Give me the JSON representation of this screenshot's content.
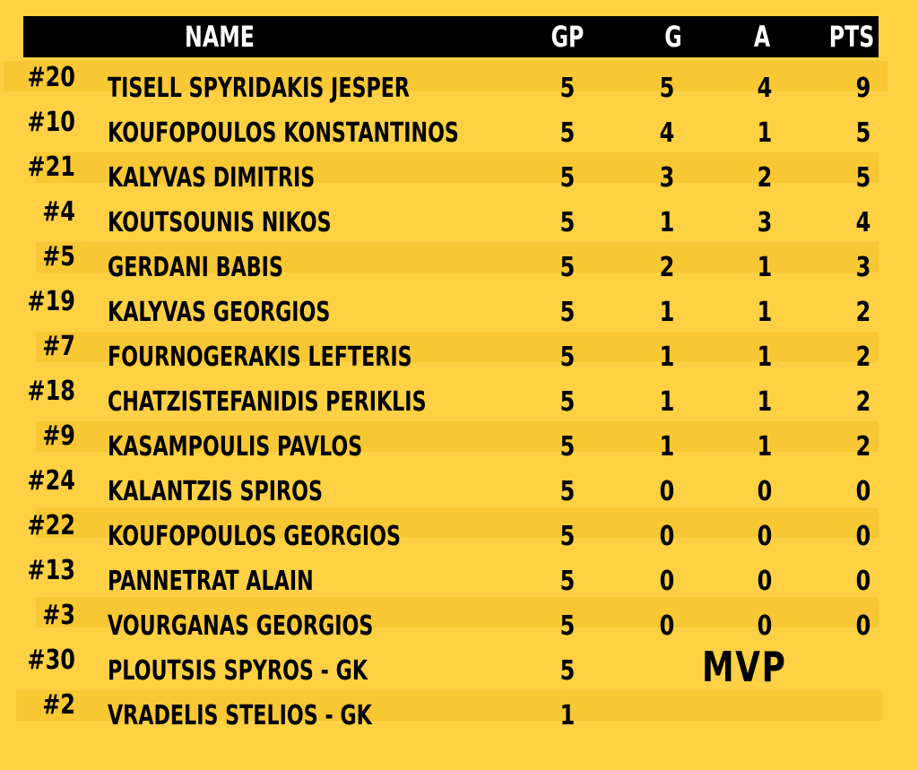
{
  "header": {
    "name": "NAME",
    "gp": "GP",
    "g": "G",
    "a": "A",
    "pts": "PTS"
  },
  "players": [
    {
      "number": "#20",
      "name": "TISELL SPYRIDAKIS JESPER",
      "gp": "5",
      "g": "5",
      "a": "4",
      "pts": "9"
    },
    {
      "number": "#10",
      "name": "KOUFOPOULOS KONSTANTINOS",
      "gp": "5",
      "g": "4",
      "a": "1",
      "pts": "5"
    },
    {
      "number": "#21",
      "name": "KALYVAS DIMITRIS",
      "gp": "5",
      "g": "3",
      "a": "2",
      "pts": "5"
    },
    {
      "number": "#4",
      "name": "KOUTSOUNIS NIKOS",
      "gp": "5",
      "g": "1",
      "a": "3",
      "pts": "4"
    },
    {
      "number": "#5",
      "name": "GERDANI BABIS",
      "gp": "5",
      "g": "2",
      "a": "1",
      "pts": "3"
    },
    {
      "number": "#19",
      "name": "KALYVAS GEORGIOS",
      "gp": "5",
      "g": "1",
      "a": "1",
      "pts": "2"
    },
    {
      "number": "#7",
      "name": "FOURNOGERAKIS LEFTERIS",
      "gp": "5",
      "g": "1",
      "a": "1",
      "pts": "2"
    },
    {
      "number": "#18",
      "name": "CHATZISTEFANIDIS PERIKLIS",
      "gp": "5",
      "g": "1",
      "a": "1",
      "pts": "2"
    },
    {
      "number": "#9",
      "name": "KASAMPOULIS PAVLOS",
      "gp": "5",
      "g": "1",
      "a": "1",
      "pts": "2"
    },
    {
      "number": "#24",
      "name": "KALANTZIS SPIROS",
      "gp": "5",
      "g": "0",
      "a": "0",
      "pts": "0"
    },
    {
      "number": "#22",
      "name": "KOUFOPOULOS GEORGIOS",
      "gp": "5",
      "g": "0",
      "a": "0",
      "pts": "0"
    },
    {
      "number": "#13",
      "name": "PANNETRAT ALAIN",
      "gp": "5",
      "g": "0",
      "a": "0",
      "pts": "0"
    },
    {
      "number": "#3",
      "name": "VOURGANAS GEORGIOS",
      "gp": "5",
      "g": "0",
      "a": "0",
      "pts": "0"
    },
    {
      "number": "#30",
      "name": "PLOUTSIS SPYROS - GK",
      "gp": "5",
      "g": "",
      "a": "",
      "pts": ""
    },
    {
      "number": "#2",
      "name": "VRADELIS STELIOS - GK",
      "gp": "1",
      "g": "",
      "a": "",
      "pts": ""
    }
  ],
  "mvp_label": "MVP",
  "colors": {
    "background": "#FDD143",
    "row_band": "#F7C833",
    "header_bar": "#000000",
    "header_text": "#FFFFFF",
    "text": "#000000"
  }
}
